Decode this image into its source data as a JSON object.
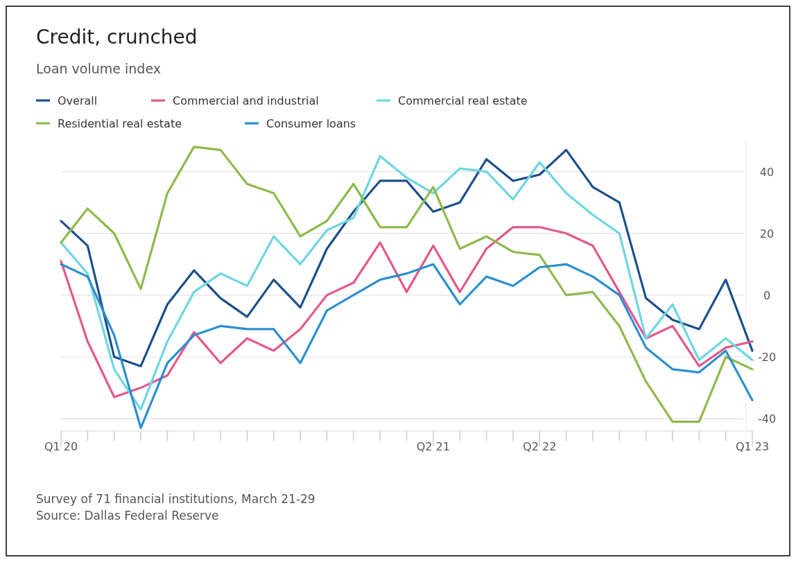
{
  "chart_data": {
    "type": "line",
    "title": "Credit, crunched",
    "subtitle": "Loan volume index",
    "categories": [
      "Q1 20",
      null,
      null,
      null,
      null,
      null,
      null,
      null,
      null,
      null,
      null,
      null,
      null,
      null,
      "Q2 21",
      null,
      null,
      null,
      "Q2 22",
      null,
      null,
      null,
      null,
      null,
      null,
      null,
      "Q1 23"
    ],
    "series": [
      {
        "name": "Overall",
        "color": "#1b4f8a",
        "values": [
          24,
          16,
          -20,
          -23,
          -3,
          8,
          -1,
          -7,
          5,
          -4,
          15,
          27,
          37,
          37,
          27,
          30,
          44,
          37,
          39,
          47,
          35,
          30,
          -1,
          -8,
          -11,
          5,
          -18
        ]
      },
      {
        "name": "Commercial and industrial",
        "color": "#e4578a",
        "values": [
          11,
          -15,
          -33,
          -30,
          -26,
          -12,
          -22,
          -14,
          -18,
          -11,
          0,
          4,
          17,
          1,
          16,
          1,
          15,
          22,
          22,
          20,
          16,
          1,
          -14,
          -10,
          -23,
          -17,
          -15
        ]
      },
      {
        "name": "Commercial real estate",
        "color": "#6dd6e3",
        "values": [
          17,
          7,
          -24,
          -37,
          -15,
          1,
          7,
          3,
          19,
          10,
          21,
          25,
          45,
          38,
          33,
          41,
          40,
          31,
          43,
          33,
          26,
          20,
          -14,
          -3,
          -21,
          -14,
          -21
        ]
      },
      {
        "name": "Residential real estate",
        "color": "#8db94b",
        "values": [
          17,
          28,
          20,
          2,
          33,
          48,
          47,
          36,
          33,
          19,
          24,
          36,
          22,
          22,
          35,
          15,
          19,
          14,
          13,
          0,
          1,
          -10,
          -28,
          -41,
          -41,
          -20,
          -24
        ]
      },
      {
        "name": "Consumer loans",
        "color": "#2a8fd0",
        "values": [
          10,
          6,
          -13,
          -43,
          -22,
          -13,
          -10,
          -11,
          -11,
          -22,
          -5,
          0,
          5,
          7,
          10,
          -3,
          6,
          3,
          9,
          10,
          6,
          0,
          -17,
          -24,
          -25,
          -18,
          -34
        ]
      }
    ],
    "ylim": [
      -44,
      50
    ],
    "yticks": [
      -40,
      -20,
      0,
      20,
      40
    ],
    "grid": "y",
    "legend": "top left",
    "marker": "none",
    "line_style": "solid",
    "annotations": [
      "Survey of 71 financial institutions, March 21-29",
      "Source: Dallas Federal Reserve"
    ]
  }
}
